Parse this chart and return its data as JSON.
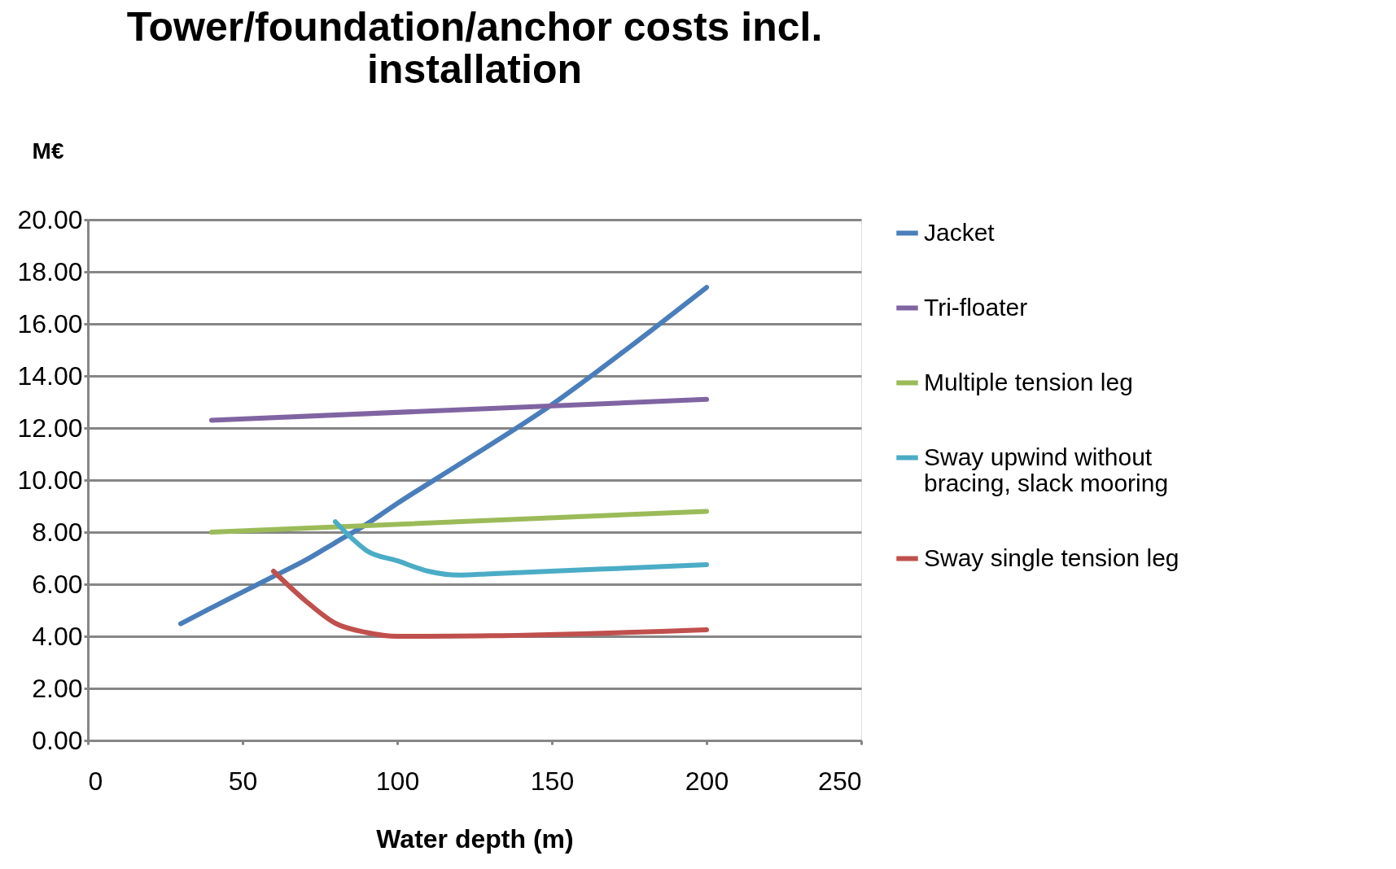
{
  "chart_data": {
    "type": "line",
    "title": [
      "Tower/foundation/anchor costs incl.",
      "installation"
    ],
    "xlabel": "Water depth (m)",
    "ylabel": "M€",
    "xlim": [
      0,
      250
    ],
    "xticks": [
      0,
      50,
      100,
      150,
      200,
      250
    ],
    "ylim": [
      0,
      20
    ],
    "yticks": [
      {
        "value": 0,
        "label": "0.00"
      },
      {
        "value": 2,
        "label": "2.00"
      },
      {
        "value": 4,
        "label": "4.00"
      },
      {
        "value": 6,
        "label": "6.00"
      },
      {
        "value": 8,
        "label": "8.00"
      },
      {
        "value": 10,
        "label": "10.00"
      },
      {
        "value": 12,
        "label": "12.00"
      },
      {
        "value": 14,
        "label": "14.00"
      },
      {
        "value": 16,
        "label": "16.00"
      },
      {
        "value": 18,
        "label": "18.00"
      },
      {
        "value": 20,
        "label": "20.00"
      }
    ],
    "grid": "y",
    "legend": "right",
    "marker": "none",
    "line_style": "solid",
    "series": [
      {
        "name": "Jacket",
        "color": "#4a7ebb",
        "x": [
          30,
          40,
          50,
          60,
          70,
          80,
          90,
          100,
          120,
          150,
          175,
          200
        ],
        "values": [
          4.48,
          5.1,
          5.7,
          6.3,
          6.9,
          7.6,
          8.3,
          9.1,
          10.6,
          12.9,
          15.1,
          17.4
        ]
      },
      {
        "name": "Tri-floater",
        "color": "#8064a2",
        "x": [
          40,
          200
        ],
        "values": [
          12.3,
          13.1
        ]
      },
      {
        "name": "Multiple tension leg",
        "color": "#9bbb59",
        "x": [
          40,
          200
        ],
        "values": [
          8.0,
          8.8
        ]
      },
      {
        "name": "Sway upwind without bracing, slack mooring",
        "color": "#4bacc6",
        "x": [
          80,
          85,
          90,
          100,
          110,
          120,
          130,
          200
        ],
        "values": [
          8.4,
          7.8,
          7.3,
          6.9,
          6.5,
          6.35,
          6.4,
          6.75
        ]
      },
      {
        "name": "Sway single tension leg",
        "color": "#c0504d",
        "x": [
          60,
          70,
          80,
          90,
          100,
          110,
          130,
          200
        ],
        "values": [
          6.5,
          5.4,
          4.5,
          4.15,
          4.0,
          4.0,
          4.02,
          4.25
        ]
      }
    ]
  }
}
